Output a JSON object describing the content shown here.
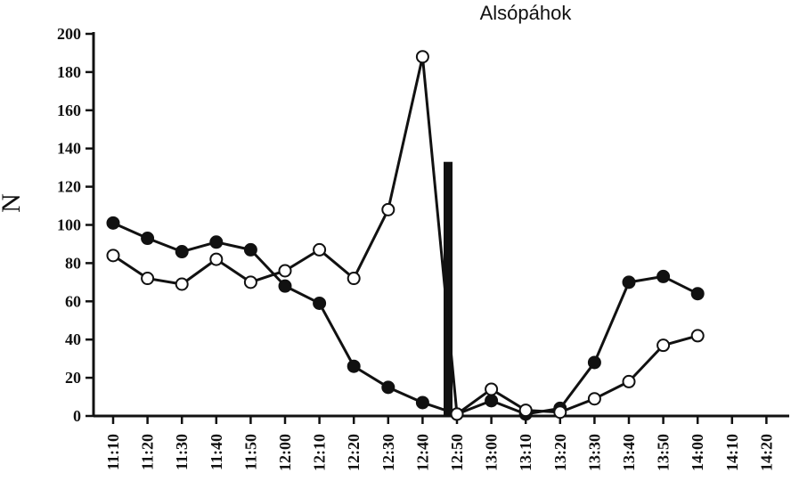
{
  "chart_data": {
    "type": "line",
    "title": "Alsópáhok",
    "xlabel": "",
    "ylabel": "N",
    "categories": [
      "11:10",
      "11:20",
      "11:30",
      "11:40",
      "11:50",
      "12:00",
      "12:10",
      "12:20",
      "12:30",
      "12:40",
      "12:50",
      "13:00",
      "13:10",
      "13:20",
      "13:30",
      "13:40",
      "13:50",
      "14:00",
      "14:10",
      "14:20"
    ],
    "ylim": [
      0,
      200
    ],
    "yticks": [
      0,
      20,
      40,
      60,
      80,
      100,
      120,
      140,
      160,
      180,
      200
    ],
    "grid": false,
    "series": [
      {
        "marker": "filled-circle",
        "color": "#111111",
        "values": [
          101,
          93,
          86,
          91,
          87,
          68,
          59,
          26,
          15,
          7,
          1,
          8,
          1,
          4,
          28,
          70,
          73,
          64,
          null,
          null
        ]
      },
      {
        "marker": "open-circle",
        "color": "#111111",
        "values": [
          84,
          72,
          69,
          82,
          70,
          76,
          87,
          72,
          108,
          188,
          1,
          14,
          3,
          2,
          9,
          18,
          37,
          42,
          null,
          null
        ]
      }
    ],
    "annotations": [
      {
        "type": "vertical-bar",
        "x": "12:50",
        "value": 133
      }
    ]
  }
}
